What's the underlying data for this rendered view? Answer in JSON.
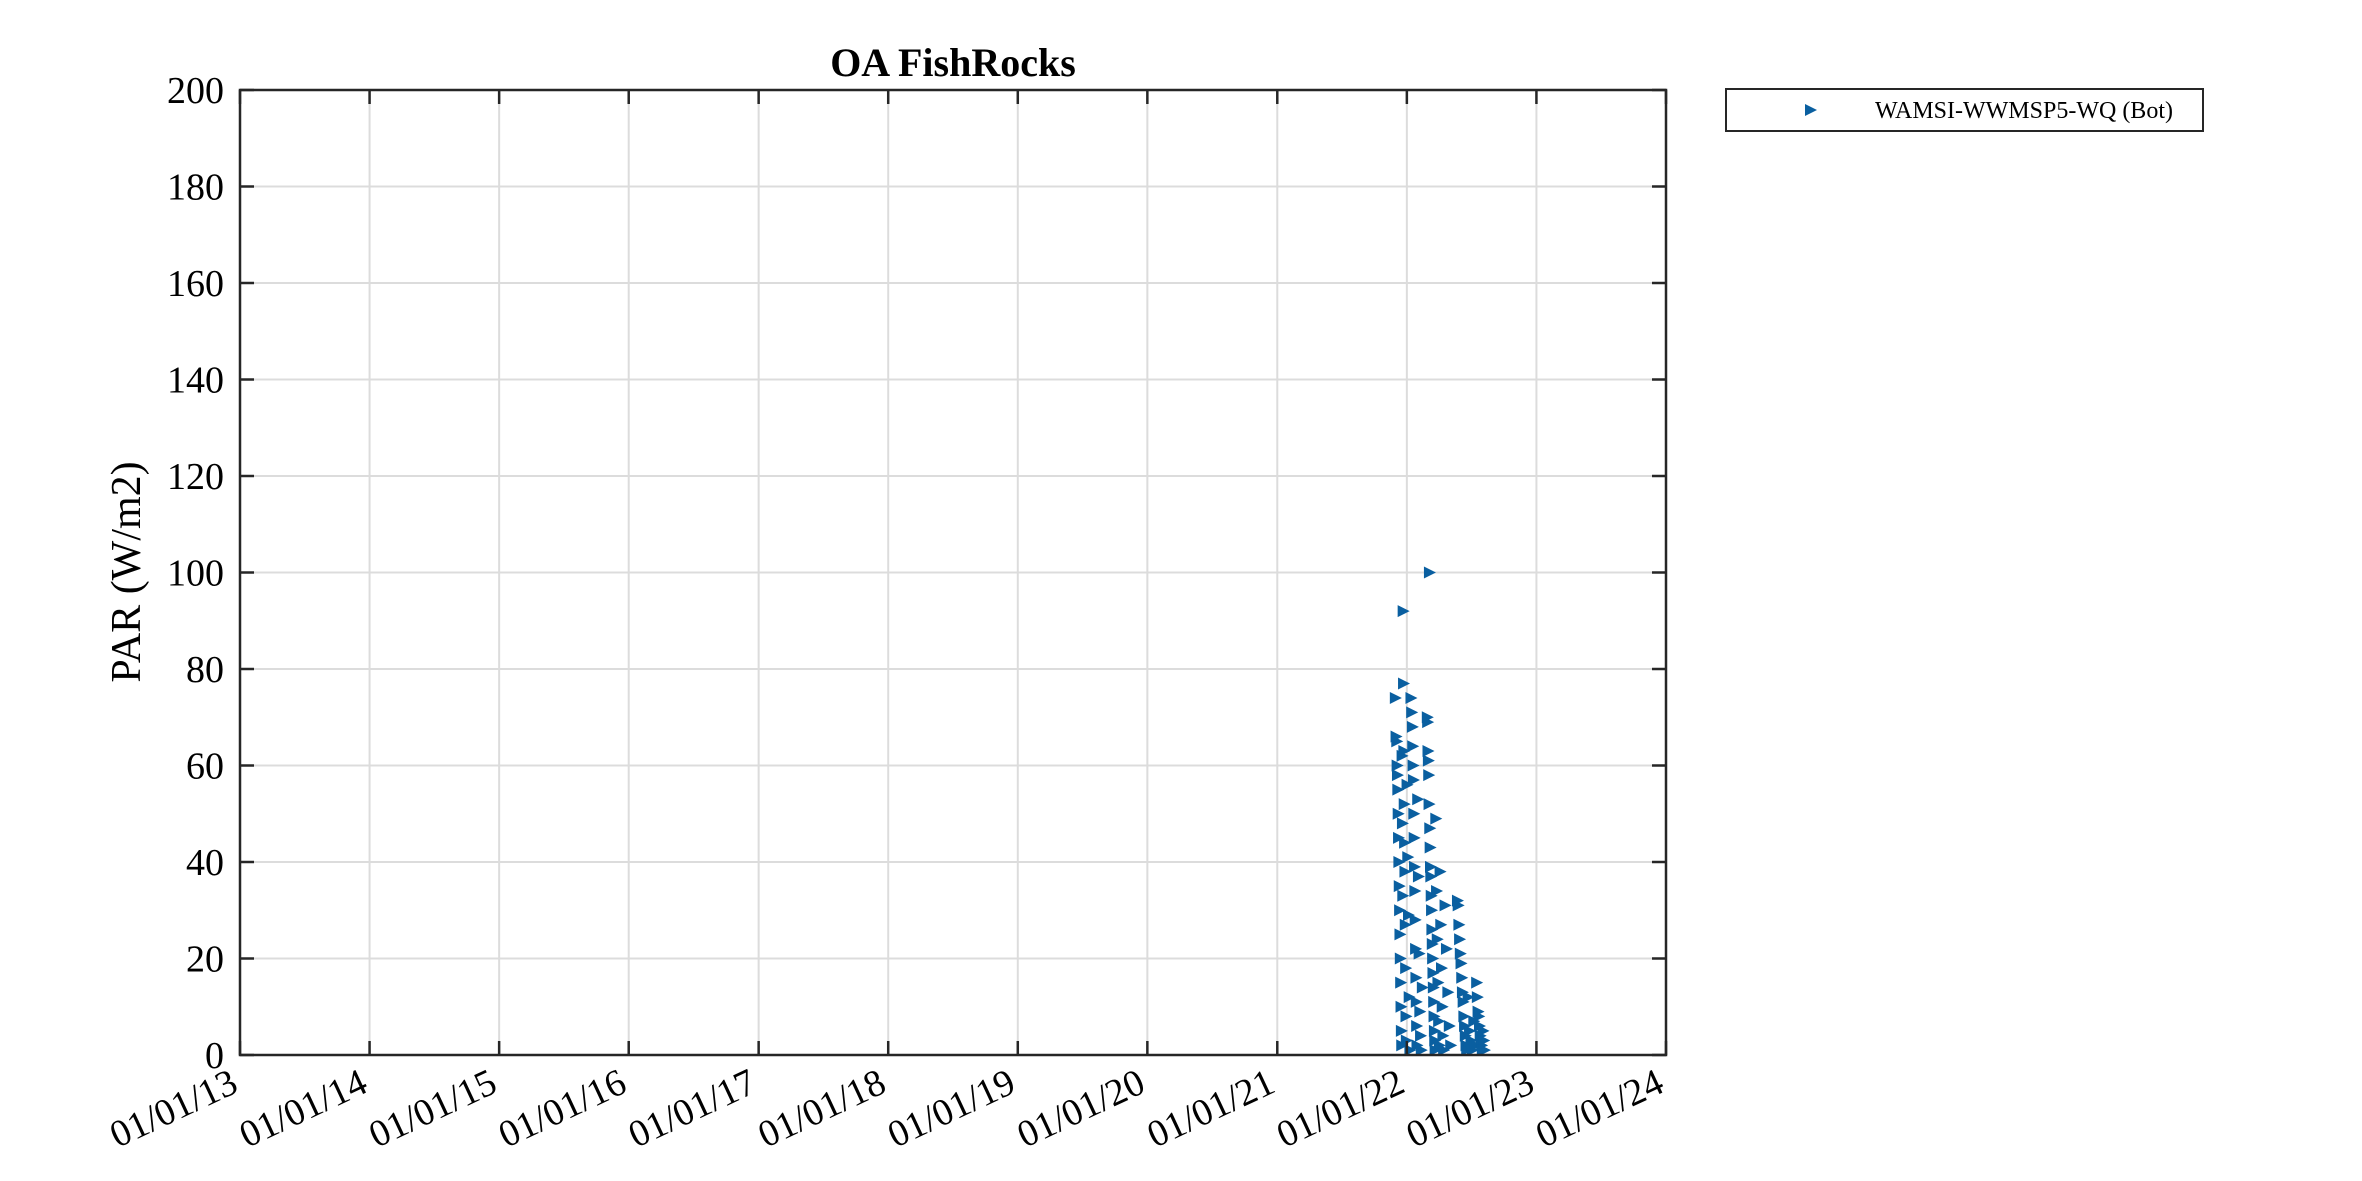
{
  "chart_data": {
    "type": "scatter",
    "title": "OA FishRocks",
    "xlabel": "",
    "ylabel": "PAR (W/m2)",
    "xlim": [
      "01/01/13",
      "01/01/24"
    ],
    "ylim": [
      0,
      200
    ],
    "x_ticks": [
      "01/01/13",
      "01/01/14",
      "01/01/15",
      "01/01/16",
      "01/01/17",
      "01/01/18",
      "01/01/19",
      "01/01/20",
      "01/01/21",
      "01/01/22",
      "01/01/23",
      "01/01/24"
    ],
    "y_ticks": [
      0,
      20,
      40,
      60,
      80,
      100,
      120,
      140,
      160,
      180,
      200
    ],
    "x_format": "MM/DD/YY",
    "grid": true,
    "legend_position": "outside-top-right",
    "marker": "triangle-right",
    "color": "#0a5fa0",
    "series": [
      {
        "name": "WAMSI-WWMSP5-WQ (Bot)",
        "points": [
          [
            "2021-12-01",
            74
          ],
          [
            "2021-12-03",
            66
          ],
          [
            "2021-12-05",
            65
          ],
          [
            "2021-12-06",
            60
          ],
          [
            "2021-12-07",
            58
          ],
          [
            "2021-12-08",
            55
          ],
          [
            "2021-12-09",
            50
          ],
          [
            "2021-12-10",
            45
          ],
          [
            "2021-12-11",
            40
          ],
          [
            "2021-12-12",
            35
          ],
          [
            "2021-12-13",
            30
          ],
          [
            "2021-12-14",
            25
          ],
          [
            "2021-12-15",
            20
          ],
          [
            "2021-12-16",
            15
          ],
          [
            "2021-12-17",
            10
          ],
          [
            "2021-12-18",
            5
          ],
          [
            "2021-12-19",
            2
          ],
          [
            "2021-12-20",
            62
          ],
          [
            "2021-12-21",
            48
          ],
          [
            "2021-12-22",
            33
          ],
          [
            "2021-12-23",
            92
          ],
          [
            "2021-12-24",
            77
          ],
          [
            "2021-12-25",
            63
          ],
          [
            "2021-12-26",
            52
          ],
          [
            "2021-12-27",
            44
          ],
          [
            "2021-12-28",
            38
          ],
          [
            "2021-12-29",
            27
          ],
          [
            "2021-12-30",
            18
          ],
          [
            "2021-12-31",
            8
          ],
          [
            "2022-01-01",
            3
          ],
          [
            "2022-01-03",
            56
          ],
          [
            "2022-01-05",
            41
          ],
          [
            "2022-01-07",
            29
          ],
          [
            "2022-01-09",
            12
          ],
          [
            "2022-01-11",
            1
          ],
          [
            "2022-01-14",
            74
          ],
          [
            "2022-01-16",
            71
          ],
          [
            "2022-01-18",
            68
          ],
          [
            "2022-01-19",
            64
          ],
          [
            "2022-01-20",
            60
          ],
          [
            "2022-01-21",
            57
          ],
          [
            "2022-01-22",
            50
          ],
          [
            "2022-01-23",
            45
          ],
          [
            "2022-01-24",
            39
          ],
          [
            "2022-01-25",
            34
          ],
          [
            "2022-01-26",
            28
          ],
          [
            "2022-01-27",
            22
          ],
          [
            "2022-01-28",
            16
          ],
          [
            "2022-01-29",
            11
          ],
          [
            "2022-01-30",
            6
          ],
          [
            "2022-01-31",
            2
          ],
          [
            "2022-02-02",
            53
          ],
          [
            "2022-02-04",
            37
          ],
          [
            "2022-02-06",
            21
          ],
          [
            "2022-02-08",
            9
          ],
          [
            "2022-02-10",
            4
          ],
          [
            "2022-02-12",
            1
          ],
          [
            "2022-02-15",
            14
          ],
          [
            "2022-03-01",
            70
          ],
          [
            "2022-03-02",
            69
          ],
          [
            "2022-03-03",
            63
          ],
          [
            "2022-03-04",
            61
          ],
          [
            "2022-03-05",
            58
          ],
          [
            "2022-03-06",
            52
          ],
          [
            "2022-03-07",
            100
          ],
          [
            "2022-03-08",
            47
          ],
          [
            "2022-03-09",
            43
          ],
          [
            "2022-03-10",
            39
          ],
          [
            "2022-03-11",
            37
          ],
          [
            "2022-03-12",
            33
          ],
          [
            "2022-03-13",
            30
          ],
          [
            "2022-03-14",
            26
          ],
          [
            "2022-03-15",
            23
          ],
          [
            "2022-03-16",
            20
          ],
          [
            "2022-03-17",
            17
          ],
          [
            "2022-03-18",
            14
          ],
          [
            "2022-03-19",
            11
          ],
          [
            "2022-03-20",
            8
          ],
          [
            "2022-03-21",
            5
          ],
          [
            "2022-03-22",
            3
          ],
          [
            "2022-03-23",
            1
          ],
          [
            "2022-03-25",
            49
          ],
          [
            "2022-03-27",
            34
          ],
          [
            "2022-03-29",
            24
          ],
          [
            "2022-03-31",
            15
          ],
          [
            "2022-04-02",
            7
          ],
          [
            "2022-04-04",
            2
          ],
          [
            "2022-04-06",
            38
          ],
          [
            "2022-04-08",
            27
          ],
          [
            "2022-04-10",
            18
          ],
          [
            "2022-04-12",
            10
          ],
          [
            "2022-04-14",
            4
          ],
          [
            "2022-04-16",
            1
          ],
          [
            "2022-04-20",
            31
          ],
          [
            "2022-04-24",
            22
          ],
          [
            "2022-04-28",
            13
          ],
          [
            "2022-05-02",
            6
          ],
          [
            "2022-05-06",
            2
          ],
          [
            "2022-05-25",
            32
          ],
          [
            "2022-05-27",
            31
          ],
          [
            "2022-05-29",
            27
          ],
          [
            "2022-05-31",
            24
          ],
          [
            "2022-06-02",
            21
          ],
          [
            "2022-06-04",
            19
          ],
          [
            "2022-06-06",
            16
          ],
          [
            "2022-06-08",
            13
          ],
          [
            "2022-06-10",
            11
          ],
          [
            "2022-06-12",
            8
          ],
          [
            "2022-06-14",
            6
          ],
          [
            "2022-06-16",
            4
          ],
          [
            "2022-06-18",
            2
          ],
          [
            "2022-06-20",
            1
          ],
          [
            "2022-06-24",
            12
          ],
          [
            "2022-06-28",
            5
          ],
          [
            "2022-07-02",
            3
          ],
          [
            "2022-07-06",
            1
          ],
          [
            "2022-07-10",
            7
          ],
          [
            "2022-07-14",
            2
          ],
          [
            "2022-07-18",
            15
          ],
          [
            "2022-07-20",
            12
          ],
          [
            "2022-07-22",
            9
          ],
          [
            "2022-07-24",
            8
          ],
          [
            "2022-07-26",
            6
          ],
          [
            "2022-07-28",
            4
          ],
          [
            "2022-07-30",
            3
          ],
          [
            "2022-08-01",
            2
          ],
          [
            "2022-08-03",
            1
          ],
          [
            "2022-08-05",
            5
          ],
          [
            "2022-08-07",
            3
          ],
          [
            "2022-08-09",
            1
          ]
        ]
      }
    ]
  }
}
